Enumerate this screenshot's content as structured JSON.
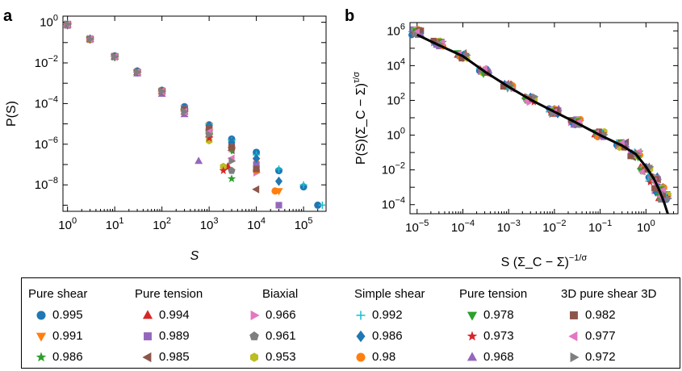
{
  "chart_data": [
    {
      "panel_label": "a",
      "type": "scatter",
      "xlabel": "S",
      "ylabel": "P(S)",
      "xscale": "log",
      "yscale": "log",
      "xlim": [
        0.8,
        300000
      ],
      "ylim": [
        5e-10,
        2
      ],
      "xticks": [
        "10^0",
        "10^1",
        "10^2",
        "10^3",
        "10^4",
        "10^5"
      ],
      "yticks": [
        "10^0",
        "10^-2",
        "10^-4",
        "10^-6",
        "10^-8"
      ],
      "grid": false,
      "series": [
        {
          "name": "0.995",
          "group": "Pure shear",
          "color": "#1f77b4",
          "marker": "circle",
          "x": [
            1,
            3,
            10,
            30,
            100,
            300,
            1000,
            3000,
            10000,
            30000,
            100000,
            200000
          ],
          "y": [
            0.8,
            0.15,
            0.022,
            0.004,
            0.00045,
            7e-05,
            9e-06,
            1.8e-06,
            4e-07,
            5e-08,
            8e-09,
            1e-09
          ]
        },
        {
          "name": "0.991",
          "group": "Pure shear",
          "color": "#ff7f0e",
          "marker": "triangle-down",
          "x": [
            1,
            3,
            10,
            30,
            100,
            300,
            1000,
            3000,
            10000,
            30000
          ],
          "y": [
            0.7,
            0.14,
            0.02,
            0.0035,
            0.0004,
            6e-05,
            8e-06,
            1.2e-06,
            1.5e-07,
            5e-09
          ]
        },
        {
          "name": "0.986",
          "group": "Pure shear",
          "color": "#2ca02c",
          "marker": "star",
          "x": [
            1,
            3,
            10,
            30,
            100,
            300,
            1000,
            3000
          ],
          "y": [
            0.8,
            0.16,
            0.022,
            0.004,
            0.0004,
            5e-05,
            3e-06,
            2e-08
          ]
        },
        {
          "name": "0.994",
          "group": "Pure tension",
          "color": "#d62728",
          "marker": "triangle-up",
          "x": [
            1,
            3,
            10,
            30,
            100,
            300,
            1000,
            2500
          ],
          "y": [
            0.75,
            0.15,
            0.021,
            0.0035,
            0.0004,
            4e-05,
            3e-06,
            8e-08
          ]
        },
        {
          "name": "0.989",
          "group": "Pure tension",
          "color": "#9467bd",
          "marker": "square",
          "x": [
            1,
            3,
            10,
            30,
            100,
            300,
            1000,
            3000,
            10000,
            30000
          ],
          "y": [
            0.7,
            0.14,
            0.02,
            0.0035,
            0.00042,
            6e-05,
            7e-06,
            1e-06,
            1e-07,
            1e-09
          ]
        },
        {
          "name": "0.985",
          "group": "Pure tension",
          "color": "#8c564b",
          "marker": "triangle-left",
          "x": [
            1,
            3,
            10,
            30,
            100,
            300,
            1000,
            3000,
            10000
          ],
          "y": [
            0.75,
            0.15,
            0.02,
            0.0035,
            0.0004,
            5e-05,
            5e-06,
            5e-07,
            6e-09
          ]
        },
        {
          "name": "0.966",
          "group": "Biaxial",
          "color": "#e377c2",
          "marker": "triangle-right",
          "x": [
            1,
            3,
            10,
            30,
            100,
            300,
            1000,
            3000,
            10000
          ],
          "y": [
            0.8,
            0.15,
            0.021,
            0.0035,
            0.0004,
            5e-05,
            5e-06,
            6e-07,
            4e-08
          ]
        },
        {
          "name": "0.961",
          "group": "Biaxial",
          "color": "#7f7f7f",
          "marker": "pentagon",
          "x": [
            1,
            3,
            10,
            30,
            100,
            300,
            1000,
            3000
          ],
          "y": [
            0.8,
            0.15,
            0.02,
            0.0035,
            0.0004,
            4e-05,
            3e-06,
            5e-08
          ]
        },
        {
          "name": "0.953",
          "group": "Biaxial",
          "color": "#bcbd22",
          "marker": "hexagon",
          "x": [
            1,
            3,
            10,
            30,
            100,
            300,
            1000,
            2000
          ],
          "y": [
            0.8,
            0.15,
            0.02,
            0.0035,
            0.0004,
            4e-05,
            1.5e-06,
            8e-08
          ]
        },
        {
          "name": "0.992",
          "group": "Simple shear",
          "color": "#17becf",
          "marker": "plus",
          "x": [
            1,
            3,
            10,
            30,
            100,
            300,
            1000,
            3000,
            10000,
            30000,
            100000,
            250000
          ],
          "y": [
            0.8,
            0.15,
            0.021,
            0.004,
            0.00045,
            7e-05,
            9e-06,
            1.5e-06,
            3e-07,
            6e-08,
            1e-08,
            1e-09
          ]
        },
        {
          "name": "0.986",
          "group": "Simple shear",
          "color": "#1f77b4",
          "marker": "diamond",
          "x": [
            1,
            3,
            10,
            30,
            100,
            300,
            1000,
            3000,
            10000,
            30000
          ],
          "y": [
            0.75,
            0.15,
            0.02,
            0.0035,
            0.0004,
            6e-05,
            8e-06,
            1.2e-06,
            2e-07,
            1.5e-08
          ]
        },
        {
          "name": "0.98",
          "group": "Simple shear",
          "color": "#ff7f0e",
          "marker": "circle",
          "x": [
            1,
            3,
            10,
            30,
            100,
            300,
            1000,
            3000,
            10000,
            25000
          ],
          "y": [
            0.75,
            0.14,
            0.02,
            0.0035,
            0.0004,
            5e-05,
            6e-06,
            7e-07,
            5e-08,
            5e-09
          ]
        },
        {
          "name": "0.978",
          "group": "Pure tension",
          "color": "#2ca02c",
          "marker": "triangle-down",
          "x": [
            1,
            3,
            10,
            30,
            100,
            300,
            1000,
            3000
          ],
          "y": [
            0.8,
            0.15,
            0.021,
            0.0035,
            0.0004,
            4e-05,
            3e-06,
            5e-07
          ]
        },
        {
          "name": "0.973",
          "group": "Pure tension",
          "color": "#d62728",
          "marker": "star",
          "x": [
            1,
            3,
            10,
            30,
            100,
            300,
            1000,
            2000
          ],
          "y": [
            0.8,
            0.15,
            0.02,
            0.0035,
            0.0004,
            4e-05,
            2e-06,
            5e-08
          ]
        },
        {
          "name": "0.968",
          "group": "Pure tension",
          "color": "#9467bd",
          "marker": "triangle-up",
          "x": [
            1,
            3,
            10,
            30,
            100,
            300,
            600
          ],
          "y": [
            0.8,
            0.15,
            0.02,
            0.003,
            0.0003,
            3e-05,
            1.5e-07
          ]
        },
        {
          "name": "0.982",
          "group": "3D pure shear 3D",
          "color": "#8c564b",
          "marker": "square",
          "x": [
            1,
            3,
            10,
            30,
            100,
            300,
            1000,
            3000,
            10000
          ],
          "y": [
            0.8,
            0.15,
            0.021,
            0.0035,
            0.0004,
            5e-05,
            6e-06,
            7e-07,
            6e-08
          ]
        },
        {
          "name": "0.977",
          "group": "3D pure shear 3D",
          "color": "#e377c2",
          "marker": "triangle-left",
          "x": [
            1,
            3,
            10,
            30,
            100,
            300,
            1000,
            3000
          ],
          "y": [
            0.8,
            0.15,
            0.02,
            0.0035,
            0.0004,
            4e-05,
            4e-06,
            2e-07
          ]
        },
        {
          "name": "0.972",
          "group": "3D pure shear 3D",
          "color": "#7f7f7f",
          "marker": "triangle-right",
          "x": [
            1,
            3,
            10,
            30,
            100,
            300,
            1000,
            3000
          ],
          "y": [
            0.8,
            0.15,
            0.02,
            0.0035,
            0.0004,
            4e-05,
            3e-06,
            1.5e-07
          ]
        }
      ]
    },
    {
      "panel_label": "b",
      "type": "scatter",
      "xlabel": "S (Σ_C − Σ)^(−1/σ)",
      "ylabel": "P(S)(Σ_C − Σ)^(τ/σ)",
      "xscale": "log",
      "yscale": "log",
      "xlim": [
        7e-06,
        5
      ],
      "ylim": [
        3e-05,
        3000000
      ],
      "xticks": [
        "10^-5",
        "10^-4",
        "10^-3",
        "10^-2",
        "10^-1",
        "10^0"
      ],
      "yticks": [
        "10^6",
        "10^4",
        "10^2",
        "10^0",
        "10^-2",
        "10^-4"
      ],
      "grid": false,
      "scaled_points": {
        "x": [
          1e-05,
          3e-05,
          0.0001,
          0.0003,
          0.001,
          0.003,
          0.01,
          0.03,
          0.1,
          0.3,
          0.6,
          1,
          1.5,
          2,
          2.5
        ],
        "y": [
          900000,
          200000,
          40000,
          5000,
          700,
          120,
          25,
          6,
          1.2,
          0.3,
          0.08,
          0.012,
          0.003,
          0.0008,
          0.0003
        ]
      },
      "fit_curve": {
        "x": [
          1e-05,
          3e-05,
          0.0001,
          0.0003,
          0.001,
          0.003,
          0.01,
          0.03,
          0.1,
          0.3,
          0.6,
          1,
          1.5,
          2,
          2.5,
          3
        ],
        "y": [
          600000,
          150000,
          35000,
          4500,
          600,
          110,
          22,
          5.2,
          1,
          0.25,
          0.08,
          0.015,
          0.003,
          0.0006,
          0.00013,
          2.5e-05
        ]
      }
    }
  ],
  "legend": {
    "headers": [
      "Pure shear",
      "Pure tension",
      "Biaxial",
      "Simple shear",
      "Pure tension",
      "3D pure shear 3D"
    ],
    "columns": [
      [
        {
          "label": "0.995",
          "color": "#1f77b4",
          "marker": "circle"
        },
        {
          "label": "0.991",
          "color": "#ff7f0e",
          "marker": "triangle-down"
        },
        {
          "label": "0.986",
          "color": "#2ca02c",
          "marker": "star"
        }
      ],
      [
        {
          "label": "0.994",
          "color": "#d62728",
          "marker": "triangle-up"
        },
        {
          "label": "0.989",
          "color": "#9467bd",
          "marker": "square"
        },
        {
          "label": "0.985",
          "color": "#8c564b",
          "marker": "triangle-left"
        }
      ],
      [
        {
          "label": "0.966",
          "color": "#e377c2",
          "marker": "triangle-right"
        },
        {
          "label": "0.961",
          "color": "#7f7f7f",
          "marker": "pentagon"
        },
        {
          "label": "0.953",
          "color": "#bcbd22",
          "marker": "hexagon"
        }
      ],
      [
        {
          "label": "0.992",
          "color": "#17becf",
          "marker": "plus"
        },
        {
          "label": "0.986",
          "color": "#1f77b4",
          "marker": "diamond"
        },
        {
          "label": "0.98",
          "color": "#ff7f0e",
          "marker": "circle"
        }
      ],
      [
        {
          "label": "0.978",
          "color": "#2ca02c",
          "marker": "triangle-down"
        },
        {
          "label": "0.973",
          "color": "#d62728",
          "marker": "star"
        },
        {
          "label": "0.968",
          "color": "#9467bd",
          "marker": "triangle-up"
        }
      ],
      [
        {
          "label": "0.982",
          "color": "#8c564b",
          "marker": "square"
        },
        {
          "label": "0.977",
          "color": "#e377c2",
          "marker": "triangle-left"
        },
        {
          "label": "0.972",
          "color": "#7f7f7f",
          "marker": "triangle-right"
        }
      ]
    ]
  }
}
